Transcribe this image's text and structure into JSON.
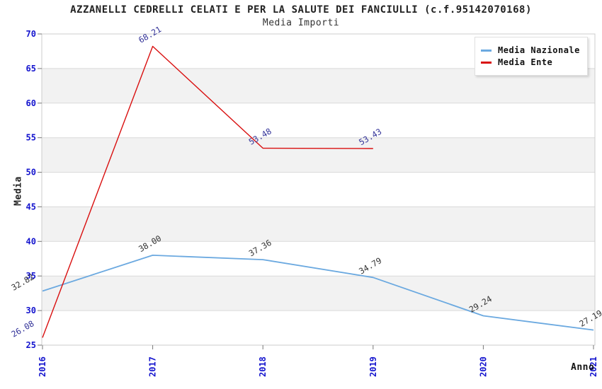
{
  "chart_data": {
    "type": "line",
    "title": "AZZANELLI CEDRELLI CELATI E PER LA SALUTE DEI FANCIULLI (c.f.95142070168)",
    "subtitle": "Media Importi",
    "xlabel": "Anno",
    "ylabel": "Media",
    "categories": [
      "2016",
      "2017",
      "2018",
      "2019",
      "2020",
      "2021"
    ],
    "yticks": [
      25,
      30,
      35,
      40,
      45,
      50,
      55,
      60,
      65,
      70
    ],
    "ylim": [
      25,
      70
    ],
    "grid": "horizontal",
    "band_rows": "alternating gray bands between 30-35, 40-45, 50-55, 60-65",
    "legend_position": "top-right",
    "series": [
      {
        "name": "Media Nazionale",
        "color": "#6BA9E0",
        "label_color": "#333333",
        "values": [
          32.82,
          38.0,
          37.36,
          34.79,
          29.24,
          27.19
        ]
      },
      {
        "name": "Media Ente",
        "color": "#D90F0F",
        "label_color": "#333399",
        "values": [
          26.08,
          68.21,
          53.48,
          53.43,
          null,
          null
        ]
      }
    ],
    "colors": {
      "axis_text": "#1414CE",
      "grid": "#D9D9D9",
      "band": "#F2F2F2",
      "frame": "#CCCCCC",
      "tick_mark": "#777777"
    }
  }
}
